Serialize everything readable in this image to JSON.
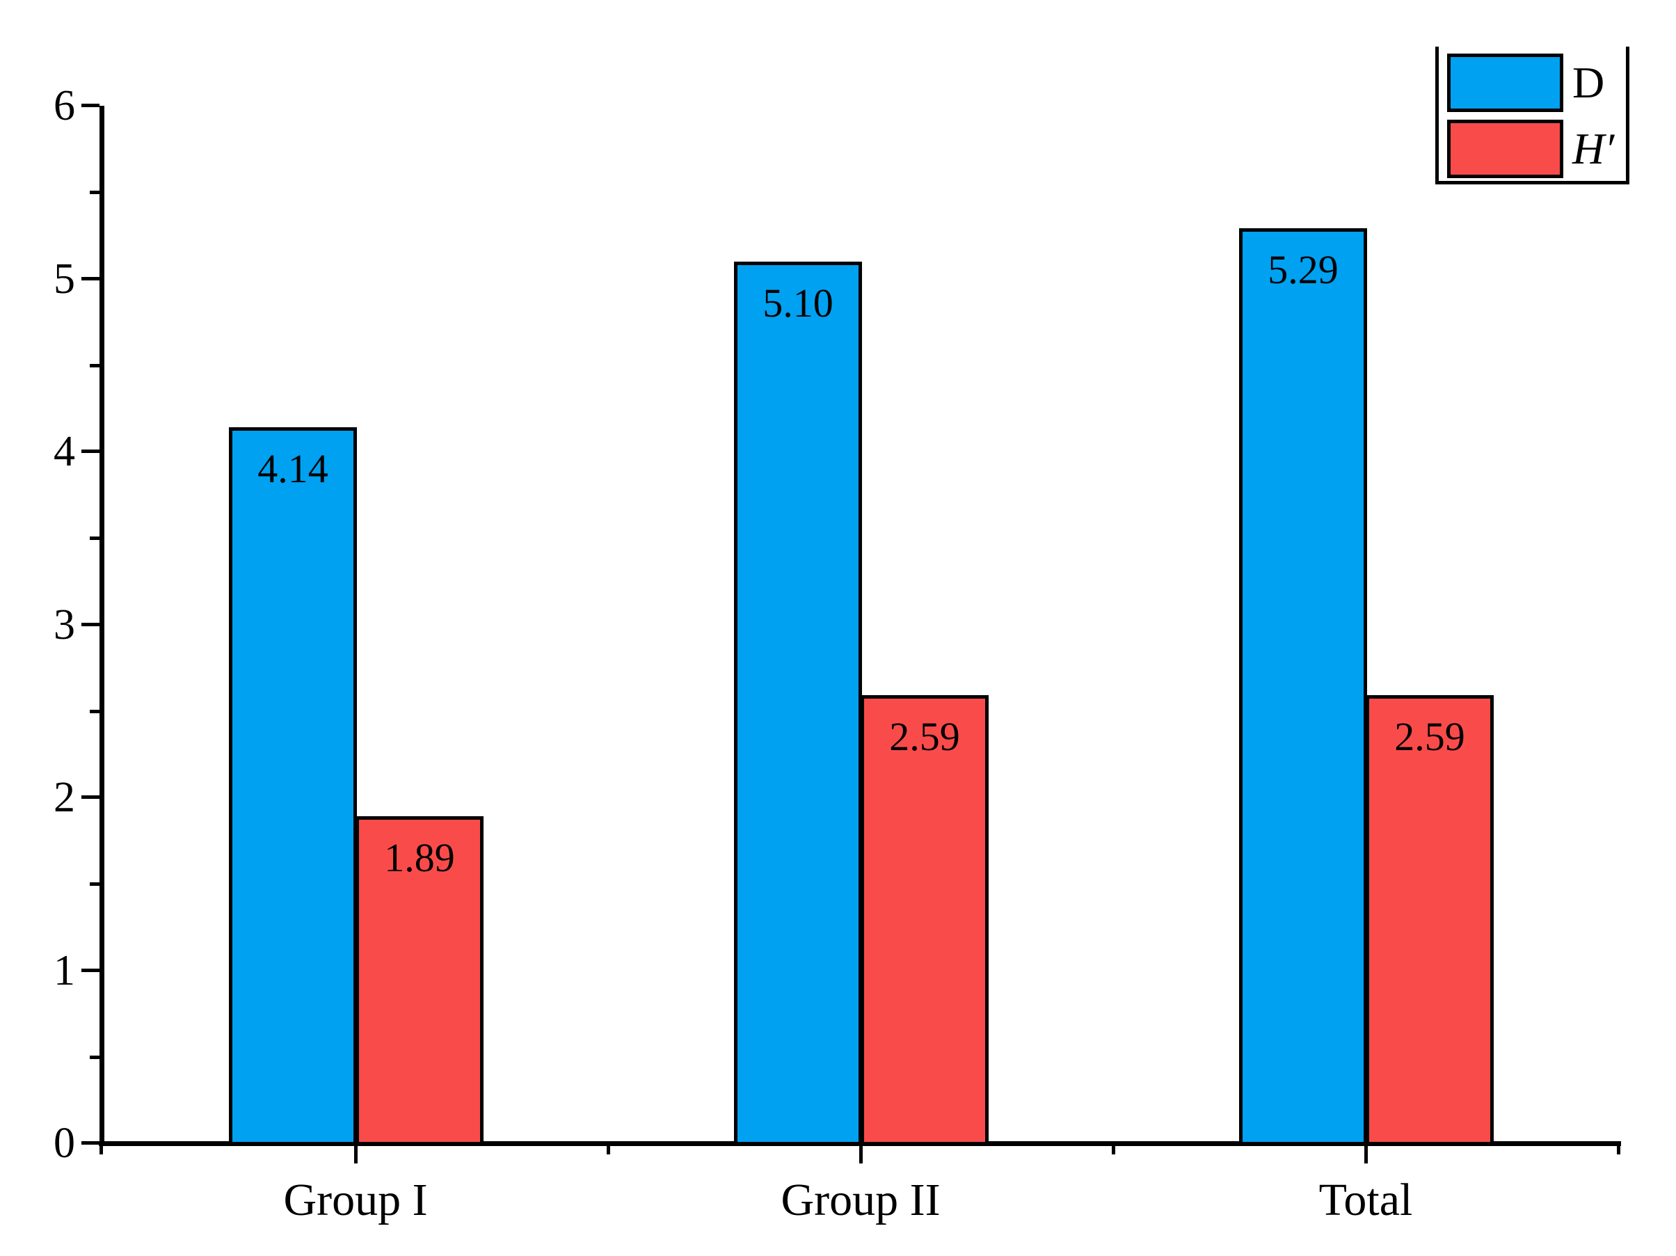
{
  "chart_data": {
    "type": "bar",
    "categories": [
      "Group I",
      "Group II",
      "Total"
    ],
    "series": [
      {
        "name": "D",
        "italic": false,
        "color": "#00a1f1",
        "values": [
          4.14,
          5.1,
          5.29
        ],
        "display_values": [
          "4.14",
          "5.10",
          "5.29"
        ]
      },
      {
        "name": "H′",
        "italic": true,
        "color": "#fa4b4b",
        "values": [
          1.89,
          2.59,
          2.59
        ],
        "display_values": [
          "1.89",
          "2.59",
          "2.59"
        ]
      }
    ],
    "ylim": [
      0,
      6
    ],
    "ytick_labels": [
      "0",
      "1",
      "2",
      "3",
      "4",
      "5",
      "6"
    ],
    "minor_tick_interval": 0.5,
    "grid": false,
    "legend_position": "top-right",
    "value_labels_inside_bar_top": true,
    "bar_border_color": "#000000",
    "axis_color": "#000000",
    "value_label_color": "#000000",
    "background_color": "#ffffff"
  }
}
